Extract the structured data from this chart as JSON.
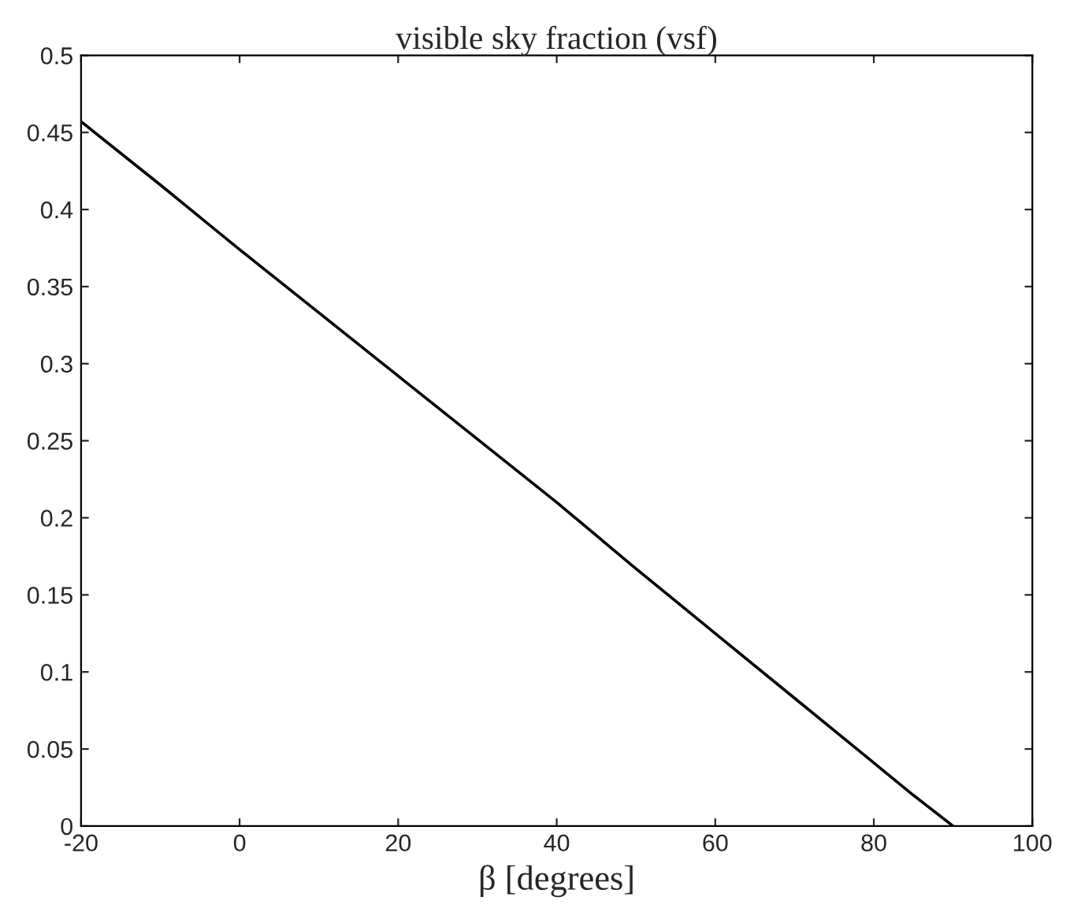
{
  "chart_data": {
    "type": "line",
    "title": "visible sky fraction (vsf)",
    "xlabel": "β [degrees]",
    "x": [
      -20,
      -10,
      0,
      10,
      20,
      30,
      40,
      50,
      60,
      70,
      80,
      85,
      90
    ],
    "series": [
      {
        "color": "#000000",
        "values": [
          0.457,
          0.416,
          0.374,
          0.333,
          0.292,
          0.251,
          0.21,
          0.167,
          0.125,
          0.083,
          0.041,
          0.02,
          0
        ]
      }
    ],
    "xlim": [
      -20,
      100
    ],
    "xticks": [
      {
        "value": -20,
        "label": "-20"
      },
      0,
      20,
      40,
      60,
      80,
      100
    ],
    "ylim": [
      0,
      0.5
    ],
    "yticks": [
      0,
      0.05,
      0.1,
      0.15,
      0.2,
      0.25,
      0.3,
      0.35,
      0.4,
      0.45,
      0.5
    ],
    "grid": false,
    "legend": false,
    "marker": "none",
    "line_style": "solid"
  }
}
